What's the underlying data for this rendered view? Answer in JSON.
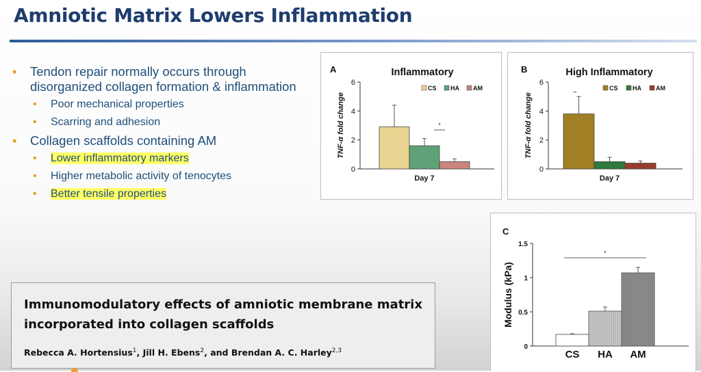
{
  "slide": {
    "title": "Amniotic Matrix Lowers Inflammation"
  },
  "bullets": [
    {
      "level": 1,
      "text": "Tendon repair normally occurs through disorganized collagen formation & inflammation",
      "highlight": false
    },
    {
      "level": 2,
      "text": "Poor mechanical properties",
      "highlight": false
    },
    {
      "level": 2,
      "text": "Scarring and adhesion",
      "highlight": false
    },
    {
      "level": 1,
      "text": "Collagen scaffolds containing AM",
      "highlight": false
    },
    {
      "level": 2,
      "text": "Lower inflammatory markers",
      "highlight": true
    },
    {
      "level": 2,
      "text": "Higher metabolic activity of tenocytes",
      "highlight": false
    },
    {
      "level": 2,
      "text": "Better tensile properties",
      "highlight": true
    }
  ],
  "reference": {
    "title": "Immunomodulatory effects of amniotic membrane matrix incorporated into collagen scaffolds",
    "authors": [
      {
        "name": "Rebecca A. Hortensius",
        "sup": "1",
        "sep": ", "
      },
      {
        "name": "Jill H. Ebens",
        "sup": "2",
        "sep": ", and "
      },
      {
        "name": "Brendan A. C. Harley",
        "sup": "2,3",
        "sep": ""
      }
    ]
  },
  "colors": {
    "title": "#1f3d6e",
    "bullet_text": "#1f4e79",
    "bullet_marker": "#e0a020",
    "highlight": "#ffff66",
    "cs_a": "#e8d391",
    "ha_a": "#5fa277",
    "am_a": "#c9857e",
    "cs_b": "#a07f25",
    "ha_b": "#2f7a3c",
    "am_b": "#983e2c"
  },
  "chart_data": [
    {
      "panel": "A",
      "type": "bar",
      "title": "Inflammatory",
      "categories": [
        "CS",
        "HA",
        "AM"
      ],
      "values": [
        2.9,
        1.6,
        0.5
      ],
      "errors": [
        1.5,
        0.5,
        0.2
      ],
      "xlabel": "Day 7",
      "ylabel": "TNF-α fold change",
      "ylim": [
        0,
        6
      ],
      "yticks": [
        0,
        2,
        4,
        6
      ],
      "legend": [
        "CS",
        "HA",
        "AM"
      ],
      "legend_position": "top-right",
      "significance": [
        {
          "from": "HA",
          "to": "AM",
          "label": "*"
        }
      ],
      "colors": [
        "#e8d391",
        "#5fa277",
        "#c9857e"
      ]
    },
    {
      "panel": "B",
      "type": "bar",
      "title": "High Inflammatory",
      "categories": [
        "CS",
        "HA",
        "AM"
      ],
      "values": [
        3.8,
        0.5,
        0.4
      ],
      "errors": [
        1.2,
        0.3,
        0.15
      ],
      "xlabel": "Day 7",
      "ylabel": "TNF-α fold change",
      "ylim": [
        0,
        6
      ],
      "yticks": [
        0,
        2,
        4,
        6
      ],
      "legend": [
        "CS",
        "HA",
        "AM"
      ],
      "legend_position": "top-right",
      "bar_annotations": [
        {
          "category": "CS",
          "label": "**"
        }
      ],
      "colors": [
        "#a07f25",
        "#2f7a3c",
        "#983e2c"
      ]
    },
    {
      "panel": "C",
      "type": "bar",
      "title": "",
      "categories": [
        "CS",
        "HA",
        "AM"
      ],
      "values": [
        0.17,
        0.51,
        1.07
      ],
      "errors": [
        0.01,
        0.06,
        0.08
      ],
      "xlabel": "",
      "ylabel": "Modulus (kPa)",
      "ylim": [
        0,
        1.5
      ],
      "yticks": [
        0,
        0.5,
        1,
        1.5
      ],
      "ytick_labels": [
        "0",
        "0.5",
        "1",
        "1.5"
      ],
      "significance": [
        {
          "from": "CS",
          "to": "AM",
          "label": "*"
        }
      ],
      "colors": [
        "#ffffff",
        "#c8c8c8",
        "#8e8e8e"
      ]
    }
  ]
}
